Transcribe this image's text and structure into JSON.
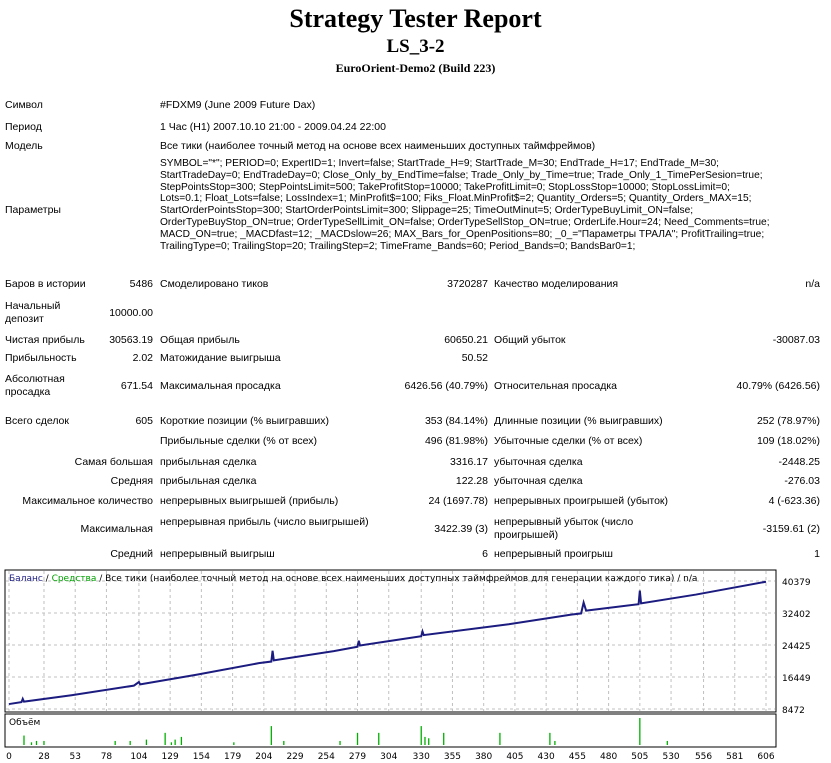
{
  "header": {
    "title": "Strategy Tester Report",
    "name": "LS_3-2",
    "server": "EuroOrient-Demo2 (Build 223)"
  },
  "info": {
    "symbol_label": "Символ",
    "symbol": "#FDXM9 (June 2009 Future Dax)",
    "period_label": "Период",
    "period": "1 Час (H1) 2007.10.10 21:00 - 2009.04.24 22:00",
    "model_label": "Модель",
    "model": "Все тики (наиболее точный метод на основе всех наименьших доступных таймфреймов)",
    "params_label": "Параметры",
    "params": [
      "SYMBOL=\"*\"; PERIOD=0; ExpertID=1; Invert=false; StartTrade_H=9; StartTrade_M=30; EndTrade_H=17; EndTrade_M=30;",
      "StartTradeDay=0; EndTradeDay=0; Close_Only_by_EndTime=false; Trade_Only_by_Time=true; Trade_Only_1_TimePerSesion=true;",
      "StepPointsStop=300; StepPointsLimit=500; TakeProfitStop=10000; TakeProfitLimit=0; StopLossStop=10000; StopLossLimit=0;",
      "Lots=0.1; Float_Lots=false; LossIndex=1; MinProfit$=100; Fiks_Float.MinProfit$=2; Quantity_Orders=5; Quantity_Orders_MAX=15;",
      "StartOrderPointsStop=300; StartOrderPointsLimit=300; Slippage=25; TimeOutMinut=5; OrderTypeBuyLimit_ON=false;",
      "OrderTypeBuyStop_ON=true; OrderTypeSellLimit_ON=false; OrderTypeSellStop_ON=true; OrderLife.Hour=24; Need_Comments=true;",
      "MACD_ON=true; _MACDfast=12; _MACDslow=26; MAX_Bars_for_OpenPositions=80; _0_=\"Параметры ТРАЛА\"; ProfitTrailing=true;",
      "TrailingType=0; TrailingStop=20; TrailingStep=2; TimeFrame_Bands=60; Period_Bands=0; BandsBar0=1;"
    ]
  },
  "stats": {
    "bars_label": "Баров в истории",
    "bars": "5486",
    "ticks_label": "Смоделировано тиков",
    "ticks": "3720287",
    "quality_label": "Качество моделирования",
    "quality": "n/a",
    "deposit_label": "Начальный депозит",
    "deposit": "10000.00",
    "net_label": "Чистая прибыль",
    "net": "30563.19",
    "gross_profit_label": "Общая прибыль",
    "gross_profit": "60650.21",
    "gross_loss_label": "Общий убыток",
    "gross_loss": "-30087.03",
    "pf_label": "Прибыльность",
    "pf": "2.02",
    "expected_label": "Матожидание выигрыша",
    "expected": "50.52",
    "abs_dd_label": "Абсолютная просадка",
    "abs_dd": "671.54",
    "max_dd_label": "Максимальная просадка",
    "max_dd": "6426.56 (40.79%)",
    "rel_dd_label": "Относительная просадка",
    "rel_dd": "40.79% (6426.56)",
    "total_label": "Всего сделок",
    "total": "605",
    "short_label": "Короткие позиции (% выигравших)",
    "short": "353 (84.14%)",
    "long_label": "Длинные позиции (% выигравших)",
    "long": "252 (78.97%)",
    "win_label": "Прибыльные сделки (% от всех)",
    "win": "496 (81.98%)",
    "loss_label": "Убыточные сделки (% от всех)",
    "loss": "109 (18.02%)",
    "largest_label": "Самая большая",
    "largest_win_label": "прибыльная сделка",
    "largest_win": "3316.17",
    "largest_loss_label": "убыточная сделка",
    "largest_loss": "-2448.25",
    "avg_label": "Средняя",
    "avg_win_label": "прибыльная сделка",
    "avg_win": "122.28",
    "avg_loss_label": "убыточная сделка",
    "avg_loss": "-276.03",
    "maxcount_label": "Максимальное количество",
    "maxcons_win_label": "непрерывных выигрышей (прибыль)",
    "maxcons_win": "24 (1697.78)",
    "maxcons_loss_label": "непрерывных проигрышей (убыток)",
    "maxcons_loss": "4 (-623.36)",
    "max_label": "Максимальная",
    "maxprofit_label": "непрерывная прибыль (число выигрышей)",
    "maxprofit": "3422.39 (3)",
    "maxloss_label": "непрерывный убыток (число проигрышей)",
    "maxloss": "-3159.61 (2)",
    "avgc_label": "Средний",
    "avgc_win_label": "непрерывный выигрыш",
    "avgc_win": "6",
    "avgc_loss_label": "непрерывный проигрыш",
    "avgc_loss": "1"
  },
  "chart_data": {
    "type": "line",
    "legend": {
      "balance": "Баланс",
      "equity": "Средства",
      "rest": "/ Все тики (наиболее точный метод на основе всех наименьших доступных таймфреймов для генерации каждого тика) / n/a"
    },
    "colors": {
      "balance": "#1c1c80",
      "equity": "#00a000",
      "volume": "#00b000",
      "grid": "#c0c0c0"
    },
    "yticks": [
      40379,
      32402,
      24425,
      16449,
      8472
    ],
    "ylim": [
      8472,
      40379
    ],
    "xticks": [
      0,
      28,
      53,
      78,
      104,
      129,
      154,
      179,
      204,
      229,
      254,
      279,
      304,
      330,
      355,
      380,
      405,
      430,
      455,
      480,
      505,
      530,
      556,
      581,
      606
    ],
    "xlim": [
      0,
      606
    ],
    "grid": true,
    "volume_label": "Объём",
    "balance": [
      [
        0,
        9700
      ],
      [
        10,
        10200
      ],
      [
        11,
        11000
      ],
      [
        12,
        10300
      ],
      [
        50,
        11900
      ],
      [
        100,
        14300
      ],
      [
        104,
        15200
      ],
      [
        105,
        14600
      ],
      [
        150,
        17000
      ],
      [
        200,
        19900
      ],
      [
        210,
        20300
      ],
      [
        211,
        23000
      ],
      [
        212,
        20600
      ],
      [
        260,
        22900
      ],
      [
        279,
        24000
      ],
      [
        280,
        25500
      ],
      [
        281,
        24300
      ],
      [
        300,
        25200
      ],
      [
        330,
        26600
      ],
      [
        331,
        27800
      ],
      [
        332,
        26900
      ],
      [
        400,
        29600
      ],
      [
        450,
        32000
      ],
      [
        458,
        32300
      ],
      [
        460,
        35000
      ],
      [
        462,
        33000
      ],
      [
        504,
        34600
      ],
      [
        505,
        38000
      ],
      [
        506,
        34800
      ],
      [
        550,
        37000
      ],
      [
        606,
        40200
      ]
    ],
    "volume": [
      [
        12,
        0.35
      ],
      [
        18,
        0.1
      ],
      [
        22,
        0.15
      ],
      [
        28,
        0.15
      ],
      [
        85,
        0.15
      ],
      [
        97,
        0.15
      ],
      [
        110,
        0.2
      ],
      [
        125,
        0.45
      ],
      [
        130,
        0.1
      ],
      [
        133,
        0.2
      ],
      [
        138,
        0.3
      ],
      [
        180,
        0.1
      ],
      [
        210,
        0.7
      ],
      [
        220,
        0.15
      ],
      [
        265,
        0.15
      ],
      [
        279,
        0.45
      ],
      [
        296,
        0.45
      ],
      [
        330,
        0.7
      ],
      [
        333,
        0.3
      ],
      [
        336,
        0.25
      ],
      [
        348,
        0.45
      ],
      [
        393,
        0.45
      ],
      [
        433,
        0.45
      ],
      [
        437,
        0.15
      ],
      [
        505,
        1.0
      ],
      [
        527,
        0.15
      ]
    ]
  }
}
